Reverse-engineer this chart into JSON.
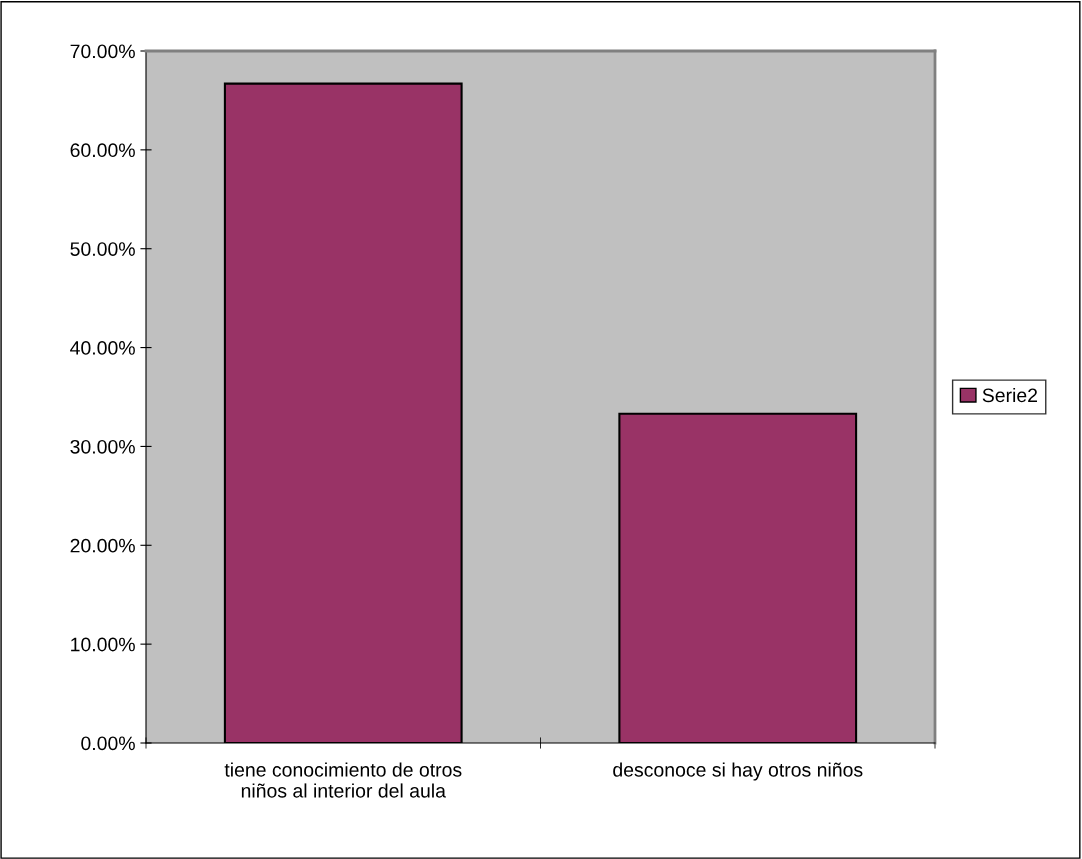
{
  "chart_data": {
    "type": "bar",
    "categories": [
      "tiene conocimiento de otros\nniños al interior del aula",
      "desconoce si hay otros niños"
    ],
    "series": [
      {
        "name": "Serie2",
        "color": "#993366",
        "values": [
          66.7,
          33.3
        ]
      }
    ],
    "ylim": [
      0,
      70
    ],
    "yticks": [
      {
        "value": 0,
        "label": "0.00%"
      },
      {
        "value": 10,
        "label": "10.00%"
      },
      {
        "value": 20,
        "label": "20.00%"
      },
      {
        "value": 30,
        "label": "30.00%"
      },
      {
        "value": 40,
        "label": "40.00%"
      },
      {
        "value": 50,
        "label": "50.00%"
      },
      {
        "value": 60,
        "label": "60.00%"
      },
      {
        "value": 70,
        "label": "70.00%"
      }
    ],
    "grid": false,
    "legend": "right"
  }
}
